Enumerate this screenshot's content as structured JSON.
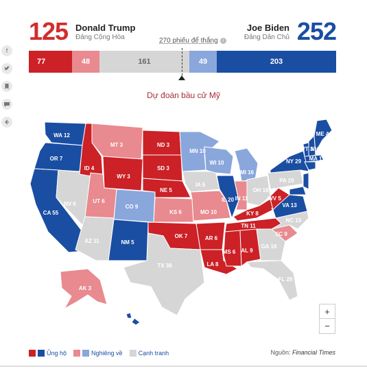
{
  "header": {
    "left_count": "125",
    "left_name": "Donald Trump",
    "left_party": "Đảng Cộng Hòa",
    "right_count": "252",
    "right_name": "Joe Biden",
    "right_party": "Đảng Dân Chủ",
    "threshold_label": "270 phiếu để thắng",
    "info_icon": "i"
  },
  "bar": {
    "solid_r": "77",
    "lean_r": "48",
    "tossup": "161",
    "lean_d": "49",
    "solid_d": "203"
  },
  "subtitle": "Dự đoán bầu cử Mỹ",
  "colors": {
    "solid_r": "#cb2127",
    "lean_r": "#e88a8f",
    "tossup": "#d6d6d6",
    "lean_d": "#8aa7dc",
    "solid_d": "#1a4ea2"
  },
  "states": {
    "WA": "WA 12",
    "OR": "OR 7",
    "CA": "CA 55",
    "NV": "NV 6",
    "ID": "ID 4",
    "MT": "MT 3",
    "WY": "WY 3",
    "UT": "UT 6",
    "AZ": "AZ 11",
    "CO": "CO 9",
    "NM": "NM 5",
    "ND": "ND 3",
    "SD": "SD 3",
    "NE": "NE 5",
    "KS": "KS 6",
    "OK": "OK 7",
    "TX": "TX 38",
    "MN": "MN 10",
    "IA": "IA 6",
    "MO": "MO 10",
    "AR": "AR 6",
    "LA": "LA 8",
    "WI": "WI 10",
    "IL": "IL 20",
    "MI": "MI 16",
    "IN": "IN 11",
    "OH": "OH 18",
    "KY": "KY 8",
    "TN": "TN 11",
    "MS": "MS 6",
    "AL": "AL 9",
    "GA": "GA 16",
    "FL": "FL 29",
    "SC": "SC 9",
    "NC": "NC 15",
    "VA": "VA 13",
    "WV": "WV 5",
    "PA": "PA 20",
    "NY": "NY 29",
    "ME": "ME 4",
    "VT": "VT 3",
    "NH": "NH 4",
    "MA": "MA 11",
    "AK": "AK 3"
  },
  "zoom": {
    "in": "+",
    "out": "−"
  },
  "legend": {
    "solid_label": "Ủng hộ",
    "lean_label": "Nghiêng về",
    "toss_label": "Cạnh tranh"
  },
  "source": {
    "prefix": "Nguồn:",
    "name": "Financial Times"
  }
}
